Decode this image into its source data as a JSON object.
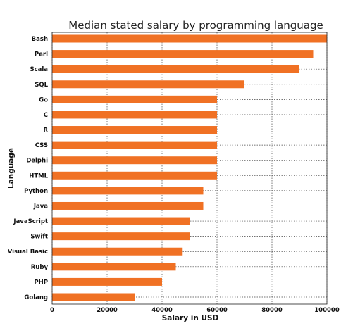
{
  "chart_data": {
    "type": "bar",
    "orientation": "horizontal",
    "title": "Median stated salary by programming language",
    "xlabel": "Salary in USD",
    "ylabel": "Language",
    "categories": [
      "Bash",
      "Perl",
      "Scala",
      "SQL",
      "Go",
      "C",
      "R",
      "CSS",
      "Delphi",
      "HTML",
      "Python",
      "Java",
      "JavaScript",
      "Swift",
      "Visual Basic",
      "Ruby",
      "PHP",
      "Golang"
    ],
    "values": [
      100000,
      95000,
      90000,
      70000,
      60000,
      60000,
      60000,
      60000,
      60000,
      60000,
      55000,
      55000,
      50000,
      50000,
      47500,
      45000,
      40000,
      30000
    ],
    "xlim": [
      0,
      100000
    ],
    "xticks": [
      0,
      20000,
      40000,
      60000,
      80000,
      100000
    ],
    "xtick_labels": [
      "0",
      "20000",
      "40000",
      "60000",
      "80000",
      "100000"
    ],
    "grid": true,
    "bar_color": "#f07124"
  }
}
